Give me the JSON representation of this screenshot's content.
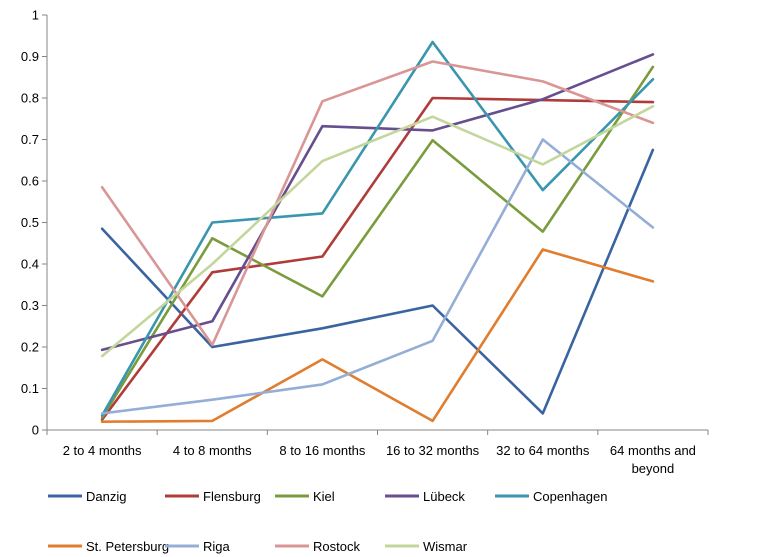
{
  "chart_data": {
    "type": "line",
    "title": "",
    "xlabel": "",
    "ylabel": "",
    "categories": [
      "2 to 4 months",
      "4 to 8 months",
      "8 to 16 months",
      "16 to 32 months",
      "32 to 64 months",
      "64 months and beyond"
    ],
    "ylim": [
      0,
      1
    ],
    "yticks": [
      "0",
      "0.1",
      "0.2",
      "0.3",
      "0.4",
      "0.5",
      "0.6",
      "0.7",
      "0.8",
      "0.9",
      "1"
    ],
    "grid": false,
    "legend_position": "bottom",
    "series": [
      {
        "name": "Danzig",
        "color": "#3a64a0",
        "values": [
          0.485,
          0.2,
          0.245,
          0.3,
          0.04,
          0.675
        ]
      },
      {
        "name": "Flensburg",
        "color": "#b03c3a",
        "values": [
          0.025,
          0.38,
          0.418,
          0.8,
          0.795,
          0.79
        ]
      },
      {
        "name": "Kiel",
        "color": "#7a9c3c",
        "values": [
          0.03,
          0.462,
          0.322,
          0.698,
          0.478,
          0.875
        ]
      },
      {
        "name": "Lübeck",
        "color": "#664e8f",
        "values": [
          0.193,
          0.262,
          0.732,
          0.722,
          0.797,
          0.905
        ]
      },
      {
        "name": "Copenhagen",
        "color": "#3a96ae",
        "values": [
          0.035,
          0.5,
          0.522,
          0.935,
          0.578,
          0.845
        ]
      },
      {
        "name": "St. Petersburg",
        "color": "#e07d2e",
        "values": [
          0.02,
          0.022,
          0.17,
          0.022,
          0.435,
          0.358
        ]
      },
      {
        "name": "Riga",
        "color": "#95aed6",
        "values": [
          0.04,
          0.073,
          0.11,
          0.215,
          0.7,
          0.488
        ]
      },
      {
        "name": "Rostock",
        "color": "#d99695",
        "values": [
          0.585,
          0.205,
          0.792,
          0.888,
          0.84,
          0.74
        ]
      },
      {
        "name": "Wismar",
        "color": "#c3d69b",
        "values": [
          0.178,
          0.4,
          0.648,
          0.755,
          0.64,
          0.78
        ]
      }
    ]
  }
}
